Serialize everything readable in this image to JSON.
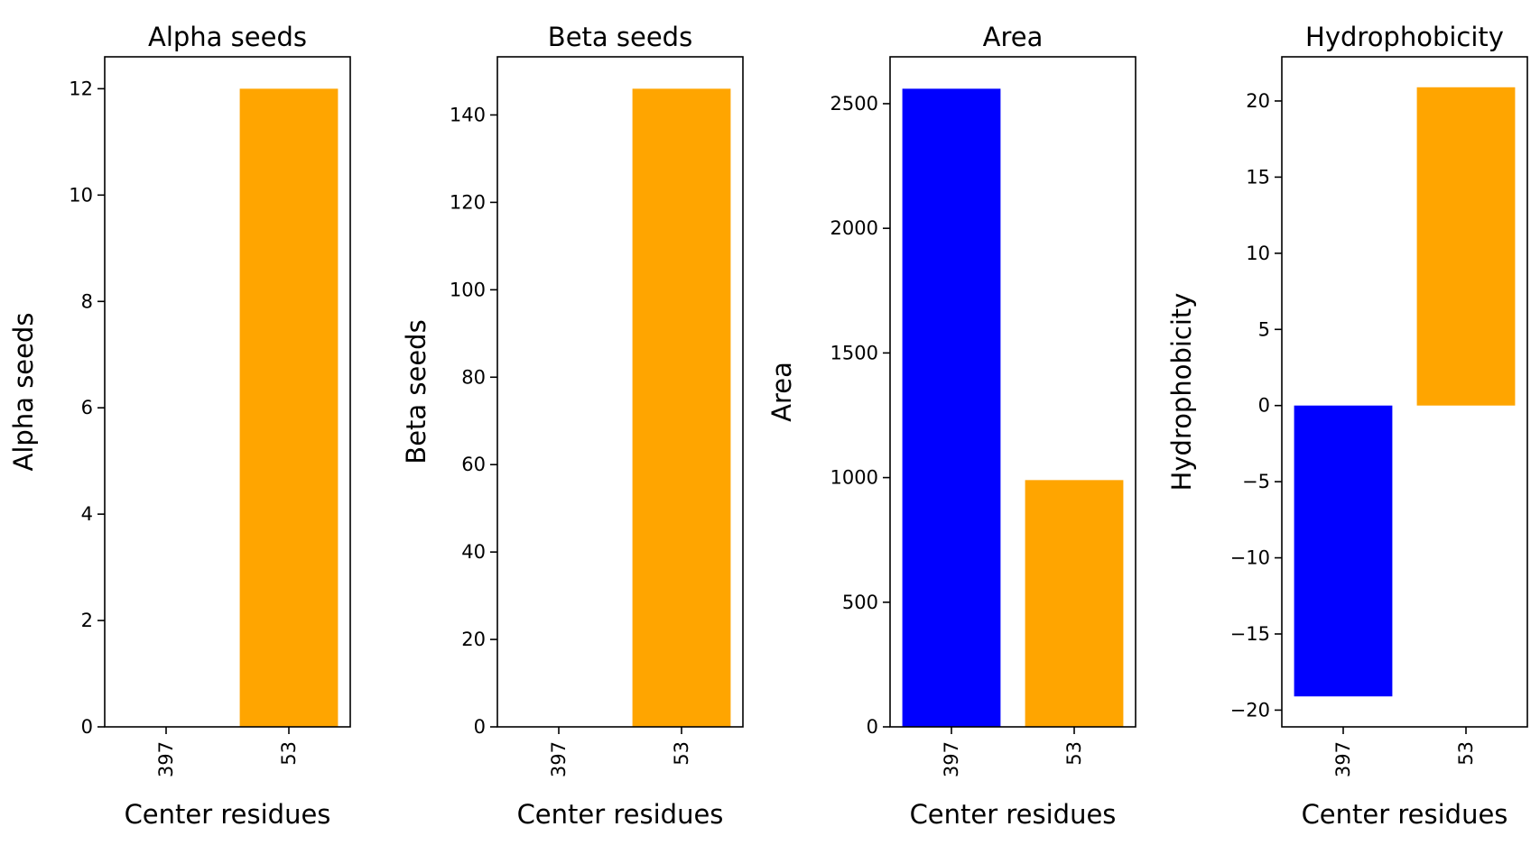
{
  "chart_data": [
    {
      "type": "bar",
      "title": "Alpha seeds",
      "xlabel": "Center residues",
      "ylabel": "Alpha seeds",
      "categories": [
        "397",
        "53"
      ],
      "values": [
        0,
        12
      ],
      "colors": [
        "#0000ff",
        "#ffa500"
      ],
      "ylim": [
        0,
        12.6
      ],
      "yticks": [
        0,
        2,
        4,
        6,
        8,
        10,
        12
      ],
      "ytick_labels": [
        "0",
        "2",
        "4",
        "6",
        "8",
        "10",
        "12"
      ],
      "grid": false
    },
    {
      "type": "bar",
      "title": "Beta seeds",
      "xlabel": "Center residues",
      "ylabel": "Beta seeds",
      "categories": [
        "397",
        "53"
      ],
      "values": [
        0,
        146
      ],
      "colors": [
        "#0000ff",
        "#ffa500"
      ],
      "ylim": [
        0,
        153.3
      ],
      "yticks": [
        0,
        20,
        40,
        60,
        80,
        100,
        120,
        140
      ],
      "ytick_labels": [
        "0",
        "20",
        "40",
        "60",
        "80",
        "100",
        "120",
        "140"
      ],
      "grid": false
    },
    {
      "type": "bar",
      "title": "Area",
      "xlabel": "Center residues",
      "ylabel": "Area",
      "categories": [
        "397",
        "53"
      ],
      "values": [
        2560,
        990
      ],
      "colors": [
        "#0000ff",
        "#ffa500"
      ],
      "ylim": [
        0,
        2688
      ],
      "yticks": [
        0,
        500,
        1000,
        1500,
        2000,
        2500
      ],
      "ytick_labels": [
        "0",
        "500",
        "1000",
        "1500",
        "2000",
        "2500"
      ],
      "grid": false
    },
    {
      "type": "bar",
      "title": "Hydrophobicity",
      "xlabel": "Center residues",
      "ylabel": "Hydrophobicity",
      "categories": [
        "397",
        "53"
      ],
      "values": [
        -19.1,
        20.9
      ],
      "colors": [
        "#0000ff",
        "#ffa500"
      ],
      "ylim": [
        -21.1,
        22.9
      ],
      "yticks": [
        -20,
        -15,
        -10,
        -5,
        0,
        5,
        10,
        15,
        20
      ],
      "ytick_labels": [
        "−20",
        "−15",
        "−10",
        "−5",
        "0",
        "5",
        "10",
        "15",
        "20"
      ],
      "grid": false
    }
  ]
}
